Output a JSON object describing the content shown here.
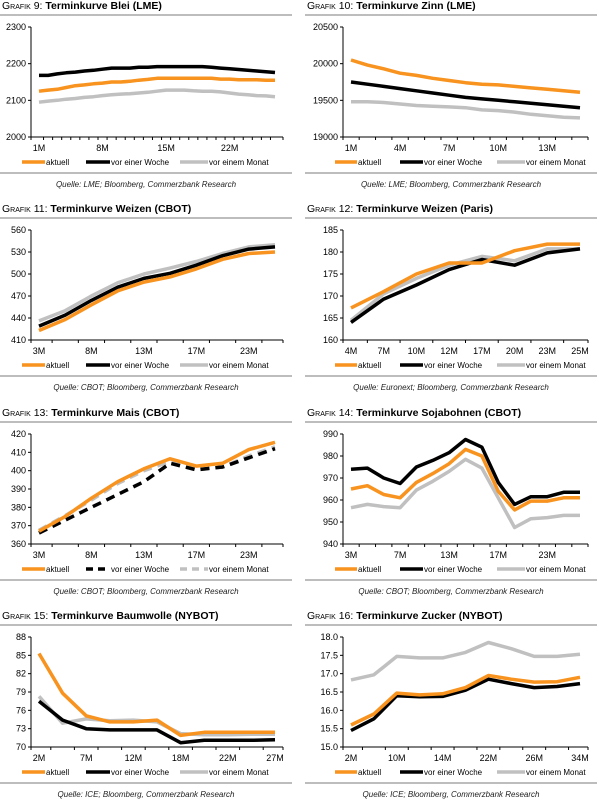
{
  "legend_labels": [
    "aktuell",
    "vor einer Woche",
    "vor einem Monat"
  ],
  "series_colors": {
    "aktuell": "#f7931e",
    "woche": "#000000",
    "monat": "#c0c0c0"
  },
  "chart_data": [
    {
      "type": "line",
      "prefix": "Grafik 9:",
      "title": "Terminkurve Blei (LME)",
      "source": "Quelle: LME; Bloomberg, Commerzbank Research",
      "ylim": [
        2000,
        2300
      ],
      "yticks": [
        2000,
        2100,
        2200,
        2300
      ],
      "x": [
        "1M",
        "2M",
        "3M",
        "4M",
        "5M",
        "6M",
        "7M",
        "8M",
        "9M",
        "10M",
        "11M",
        "12M",
        "13M",
        "14M",
        "15M",
        "16M",
        "17M",
        "18M",
        "19M",
        "20M",
        "21M",
        "22M",
        "23M",
        "24M",
        "25M",
        "26M",
        "27M"
      ],
      "xtick_labels": [
        "1M",
        "8M",
        "15M",
        "22M"
      ],
      "xtick_every": 7,
      "dashed": false,
      "series": [
        {
          "name": "aktuell",
          "values": [
            2125,
            2128,
            2130,
            2135,
            2140,
            2142,
            2145,
            2147,
            2150,
            2150,
            2152,
            2155,
            2157,
            2160,
            2160,
            2160,
            2160,
            2160,
            2160,
            2160,
            2158,
            2158,
            2156,
            2156,
            2156,
            2155,
            2155
          ]
        },
        {
          "name": "vor einer Woche",
          "values": [
            2168,
            2168,
            2172,
            2175,
            2177,
            2180,
            2182,
            2185,
            2188,
            2188,
            2188,
            2190,
            2190,
            2192,
            2192,
            2192,
            2192,
            2192,
            2192,
            2190,
            2188,
            2186,
            2184,
            2182,
            2180,
            2178,
            2176
          ]
        },
        {
          "name": "vor einem Monat",
          "values": [
            2095,
            2098,
            2100,
            2103,
            2105,
            2108,
            2110,
            2113,
            2115,
            2117,
            2118,
            2120,
            2122,
            2125,
            2128,
            2128,
            2128,
            2126,
            2125,
            2125,
            2123,
            2120,
            2117,
            2115,
            2113,
            2112,
            2110
          ]
        }
      ]
    },
    {
      "type": "line",
      "prefix": "Grafik 10:",
      "title": "Terminkurve Zinn (LME)",
      "source": "Quelle: LME; Bloomberg, Commerzbank Research",
      "ylim": [
        19000,
        20500
      ],
      "yticks": [
        19000,
        19500,
        20000,
        20500
      ],
      "x": [
        "1M",
        "2M",
        "3M",
        "4M",
        "5M",
        "6M",
        "7M",
        "8M",
        "9M",
        "10M",
        "11M",
        "12M",
        "13M",
        "14M",
        "15M"
      ],
      "xtick_labels": [
        "1M",
        "4M",
        "7M",
        "10M",
        "13M"
      ],
      "xtick_every": 3,
      "dashed": false,
      "series": [
        {
          "name": "aktuell",
          "values": [
            20050,
            19980,
            19930,
            19870,
            19840,
            19800,
            19770,
            19740,
            19720,
            19710,
            19690,
            19670,
            19650,
            19630,
            19610
          ]
        },
        {
          "name": "vor einer Woche",
          "values": [
            19750,
            19720,
            19690,
            19660,
            19630,
            19600,
            19570,
            19540,
            19520,
            19500,
            19480,
            19460,
            19440,
            19420,
            19400
          ]
        },
        {
          "name": "vor einem Monat",
          "values": [
            19480,
            19480,
            19470,
            19450,
            19430,
            19420,
            19410,
            19400,
            19370,
            19360,
            19340,
            19310,
            19290,
            19270,
            19260
          ]
        }
      ]
    },
    {
      "type": "line",
      "prefix": "Grafik 11:",
      "title": "Terminkurve Weizen (CBOT)",
      "source": "Quelle: CBOT; Bloomberg, Commerzbank Research",
      "ylim": [
        410,
        560
      ],
      "yticks": [
        410,
        440,
        470,
        500,
        530,
        560
      ],
      "x": [
        "3M",
        "5M",
        "8M",
        "10M",
        "13M",
        "15M",
        "17M",
        "20M",
        "23M",
        "25M"
      ],
      "xtick_labels": [
        "3M",
        "8M",
        "13M",
        "17M",
        "23M"
      ],
      "xtick_every": 2,
      "dashed": false,
      "series": [
        {
          "name": "aktuell",
          "values": [
            423,
            438,
            458,
            477,
            489,
            496,
            507,
            520,
            528,
            530
          ]
        },
        {
          "name": "vor einer Woche",
          "values": [
            429,
            444,
            464,
            482,
            494,
            501,
            512,
            525,
            534,
            537
          ]
        },
        {
          "name": "vor einem Monat",
          "values": [
            436,
            450,
            470,
            488,
            500,
            508,
            517,
            528,
            537,
            540
          ]
        }
      ]
    },
    {
      "type": "line",
      "prefix": "Grafik 12:",
      "title": "Terminkurve Weizen (Paris)",
      "source": "Quelle: Euronext; Bloomberg, Commerzbank Research",
      "ylim": [
        160,
        185
      ],
      "yticks": [
        160,
        165,
        170,
        175,
        180,
        185
      ],
      "x": [
        "4M",
        "7M",
        "10M",
        "12M",
        "17M",
        "20M",
        "23M",
        "25M"
      ],
      "xtick_labels": [
        "4M",
        "7M",
        "10M",
        "12M",
        "17M",
        "20M",
        "23M",
        "25M"
      ],
      "xtick_every": 1,
      "dashed": false,
      "series": [
        {
          "name": "aktuell",
          "values": [
            167.3,
            171.0,
            175.0,
            177.5,
            177.5,
            180.3,
            181.8,
            181.8
          ]
        },
        {
          "name": "vor einer Woche",
          "values": [
            164.0,
            169.3,
            172.5,
            176.0,
            178.3,
            177.0,
            179.8,
            180.7
          ]
        },
        {
          "name": "vor einem Monat",
          "values": [
            164.5,
            170.5,
            174.0,
            177.0,
            179.0,
            178.0,
            180.7,
            180.7
          ]
        }
      ]
    },
    {
      "type": "line",
      "prefix": "Grafik 13:",
      "title": "Terminkurve Mais (CBOT)",
      "source": "Quelle: CBOT; Bloomberg, Commerzbank Research",
      "ylim": [
        360,
        420
      ],
      "yticks": [
        360,
        370,
        380,
        390,
        400,
        410,
        420
      ],
      "x": [
        "3M",
        "5M",
        "8M",
        "10M",
        "13M",
        "15M",
        "17M",
        "20M",
        "23M",
        "25M"
      ],
      "xtick_labels": [
        "3M",
        "8M",
        "13M",
        "17M",
        "23M"
      ],
      "xtick_every": 2,
      "dashed": true,
      "series": [
        {
          "name": "aktuell",
          "values": [
            367,
            375,
            385,
            394,
            401,
            406.5,
            402.5,
            404,
            411.5,
            415.5
          ]
        },
        {
          "name": "vor einer Woche",
          "values": [
            366,
            373,
            380,
            387,
            394,
            404,
            400.5,
            402,
            407,
            412
          ]
        },
        {
          "name": "vor einem Monat",
          "values": [
            367.5,
            375.5,
            384,
            393,
            400,
            405,
            400.5,
            402,
            408,
            413
          ]
        }
      ]
    },
    {
      "type": "line",
      "prefix": "Grafik 14:",
      "title": "Terminkurve Sojabohnen (CBOT)",
      "source": "Quelle: CBOT; Bloomberg, Commerzbank Research",
      "ylim": [
        940,
        990
      ],
      "yticks": [
        940,
        950,
        960,
        970,
        980,
        990
      ],
      "x": [
        "3M",
        "5M",
        "6M",
        "7M",
        "9M",
        "11M",
        "13M",
        "14M",
        "15M",
        "17M",
        "19M",
        "21M",
        "23M",
        "24M",
        "25M"
      ],
      "xtick_labels": [
        "3M",
        "7M",
        "13M",
        "17M",
        "23M"
      ],
      "xtick_every": 3,
      "dashed": false,
      "series": [
        {
          "name": "aktuell",
          "values": [
            965,
            966.5,
            962.5,
            961,
            968,
            972,
            976.5,
            983,
            980,
            964,
            955.5,
            959.5,
            959.5,
            961,
            961
          ]
        },
        {
          "name": "vor einer Woche",
          "values": [
            974,
            974.5,
            970,
            967.5,
            975,
            978,
            981.5,
            987.5,
            984,
            968,
            958,
            961.5,
            961.5,
            963.5,
            963.5
          ]
        },
        {
          "name": "vor einem Monat",
          "values": [
            956.5,
            958,
            957,
            956.5,
            964.5,
            968.5,
            973,
            978.5,
            974.5,
            961,
            947.5,
            951.5,
            952,
            953,
            953
          ]
        }
      ]
    },
    {
      "type": "line",
      "prefix": "Grafik 15:",
      "title": "Terminkurve Baumwolle (NYBOT)",
      "source": "Quelle: ICE; Bloomberg, Commerzbank Research",
      "ylim": [
        70,
        88
      ],
      "yticks": [
        70,
        73,
        76,
        79,
        82,
        85,
        88
      ],
      "x": [
        "2M",
        "5M",
        "7M",
        "10M",
        "12M",
        "15M",
        "18M",
        "20M",
        "22M",
        "25M",
        "27M"
      ],
      "xtick_labels": [
        "2M",
        "7M",
        "12M",
        "18M",
        "22M",
        "27M"
      ],
      "xtick_every": 2,
      "dashed": false,
      "series": [
        {
          "name": "aktuell",
          "values": [
            85.3,
            78.8,
            75.1,
            74.1,
            74.1,
            74.4,
            71.9,
            72.4,
            72.4,
            72.4,
            72.4
          ]
        },
        {
          "name": "vor einer Woche",
          "values": [
            77.5,
            74.4,
            73.0,
            72.8,
            72.8,
            72.8,
            70.7,
            71.1,
            71.1,
            71.1,
            71.2
          ]
        },
        {
          "name": "vor einem Monat",
          "values": [
            78.3,
            73.9,
            74.6,
            74.3,
            74.4,
            74.1,
            72.2,
            72.0,
            72.0,
            72.1,
            72.1
          ]
        }
      ]
    },
    {
      "type": "line",
      "prefix": "Grafik 16:",
      "title": "Terminkurve Zucker (NYBOT)",
      "source": "Quelle: ICE; Bloomberg, Commerzbank Research",
      "ylim": [
        15.0,
        18.0
      ],
      "yticks": [
        "15.0",
        "15.5",
        "16.0",
        "16.5",
        "17.0",
        "17.5",
        "18.0"
      ],
      "x": [
        "2M",
        "6M",
        "10M",
        "12M",
        "14M",
        "18M",
        "22M",
        "24M",
        "26M",
        "30M",
        "34M"
      ],
      "xtick_labels": [
        "2M",
        "10M",
        "14M",
        "22M",
        "26M",
        "34M"
      ],
      "xtick_every": 2,
      "dashed": false,
      "series": [
        {
          "name": "aktuell",
          "values": [
            15.6,
            15.9,
            16.47,
            16.42,
            16.45,
            16.62,
            16.95,
            16.85,
            16.77,
            16.78,
            16.9
          ]
        },
        {
          "name": "vor einer Woche",
          "values": [
            15.45,
            15.77,
            16.4,
            16.37,
            16.38,
            16.55,
            16.85,
            16.73,
            16.62,
            16.65,
            16.73
          ]
        },
        {
          "name": "vor einem Monat",
          "values": [
            16.83,
            16.97,
            17.47,
            17.43,
            17.43,
            17.58,
            17.85,
            17.68,
            17.47,
            17.47,
            17.53
          ]
        }
      ]
    }
  ]
}
